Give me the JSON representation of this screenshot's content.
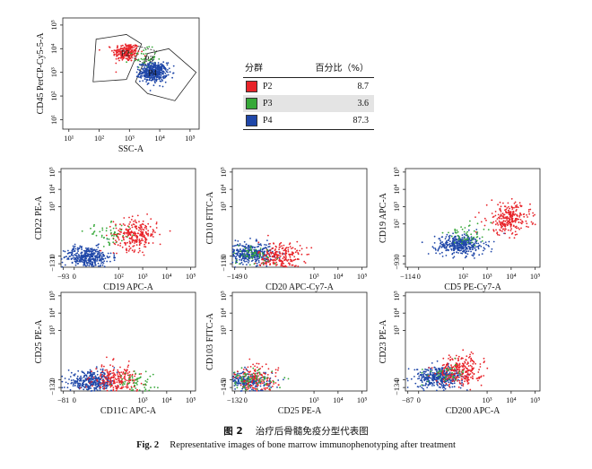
{
  "colors": {
    "P2": "#e8242a",
    "P3": "#36a838",
    "P4": "#1f47a8"
  },
  "legend": {
    "header_group": "分群",
    "header_pct": "百分比（%）",
    "rows": [
      {
        "name": "P2",
        "pct": "8.7",
        "color": "#e8242a"
      },
      {
        "name": "P3",
        "pct": "3.6",
        "color": "#36a838"
      },
      {
        "name": "P4",
        "pct": "87.3",
        "color": "#1f47a8"
      }
    ]
  },
  "caption": {
    "cn_label": "图 2",
    "cn_text": "治疗后骨髓免疫分型代表图",
    "en_label": "Fig. 2",
    "en_text": "Representative images of bone marrow immunophenotyping after treatment"
  },
  "chart_data": [
    {
      "id": "gating",
      "type": "scatter",
      "xlabel": "SSC-A",
      "ylabel": "CD45 PerCP-Cy5-5-A",
      "x_scale": "log",
      "y_scale": "log",
      "xticks": [
        "10¹",
        "10²",
        "10³",
        "10⁴",
        "10⁵"
      ],
      "yticks": [
        "10¹",
        "10²",
        "10³",
        "10⁴",
        "10⁵"
      ],
      "gates": [
        "P2",
        "P3",
        "P4"
      ],
      "populations": [
        {
          "name": "P2",
          "x": 2.9,
          "y": 3.85,
          "n": 220
        },
        {
          "name": "P3",
          "x": 3.45,
          "y": 3.6,
          "n": 40
        },
        {
          "name": "P4",
          "x": 3.8,
          "y": 3.0,
          "n": 460
        }
      ]
    },
    {
      "id": "cd22_cd19",
      "type": "scatter",
      "xlabel": "CD19 APC-A",
      "ylabel": "CD22 PE-A",
      "xticks": [
        "−93",
        "0",
        "10²",
        "10³",
        "10⁴",
        "10⁵"
      ],
      "yticks": [
        "−131",
        "0",
        "10³",
        "10⁴",
        "10⁵"
      ],
      "populations": [
        {
          "name": "P4",
          "x": 0.7,
          "y": 0.1,
          "n": 380
        },
        {
          "name": "P2",
          "x": 2.7,
          "y": 1.4,
          "n": 260
        },
        {
          "name": "P3",
          "x": 1.6,
          "y": 1.4,
          "n": 50
        }
      ]
    },
    {
      "id": "cd10_cd20",
      "type": "scatter",
      "xlabel": "CD20 APC-Cy7-A",
      "ylabel": "CD10 FITC-A",
      "xticks": [
        "−149",
        "0",
        "10³",
        "10⁴",
        "10⁵"
      ],
      "yticks": [
        "−118",
        "0",
        "10³",
        "10⁴",
        "10⁵"
      ],
      "populations": [
        {
          "name": "P4",
          "x": 0.3,
          "y": 0.3,
          "n": 380
        },
        {
          "name": "P2",
          "x": 1.6,
          "y": 0.1,
          "n": 240
        },
        {
          "name": "P3",
          "x": 0.5,
          "y": 0.2,
          "n": 50
        }
      ]
    },
    {
      "id": "cd19_cd5",
      "type": "scatter",
      "xlabel": "CD5 PE-Cy7-A",
      "ylabel": "CD19 APC-A",
      "xticks": [
        "−114",
        "0",
        "10²",
        "10³",
        "10⁴",
        "10⁵"
      ],
      "yticks": [
        "−93",
        "0",
        "10²",
        "10³",
        "10⁴",
        "10⁵"
      ],
      "populations": [
        {
          "name": "P4",
          "x": 1.9,
          "y": 0.8,
          "n": 380
        },
        {
          "name": "P2",
          "x": 3.9,
          "y": 2.3,
          "n": 260
        },
        {
          "name": "P3",
          "x": 2.2,
          "y": 1.4,
          "n": 50
        }
      ]
    },
    {
      "id": "cd25_cd11c",
      "type": "scatter",
      "xlabel": "CD11C APC-A",
      "ylabel": "CD25 PE-A",
      "xticks": [
        "−81",
        "0",
        "10³",
        "10⁴",
        "10⁵"
      ],
      "yticks": [
        "−132",
        "0",
        "10³",
        "10⁴",
        "10⁵"
      ],
      "populations": [
        {
          "name": "P4",
          "x": 0.9,
          "y": 0.0,
          "n": 380
        },
        {
          "name": "P2",
          "x": 1.9,
          "y": 0.1,
          "n": 240
        },
        {
          "name": "P3",
          "x": 2.6,
          "y": 0.05,
          "n": 60
        }
      ]
    },
    {
      "id": "cd103_cd25",
      "type": "scatter",
      "xlabel": "CD25 PE-A",
      "ylabel": "CD103 FITC-A",
      "xticks": [
        "−132",
        "0",
        "10³",
        "10⁴",
        "10⁵"
      ],
      "yticks": [
        "−145",
        "0",
        "10³",
        "10⁴",
        "10⁵"
      ],
      "populations": [
        {
          "name": "P4",
          "x": 0.2,
          "y": 0.05,
          "n": 260
        },
        {
          "name": "P2",
          "x": 0.6,
          "y": 0.1,
          "n": 160
        },
        {
          "name": "P3",
          "x": 0.3,
          "y": 0.1,
          "n": 80
        }
      ]
    },
    {
      "id": "cd23_cd200",
      "type": "scatter",
      "xlabel": "CD200 APC-A",
      "ylabel": "CD23 PE-A",
      "xticks": [
        "−87",
        "0",
        "10³",
        "10⁴",
        "10⁵"
      ],
      "yticks": [
        "−134",
        "0",
        "10³",
        "10⁴",
        "10⁵"
      ],
      "populations": [
        {
          "name": "P4",
          "x": 1.0,
          "y": 0.3,
          "n": 380
        },
        {
          "name": "P2",
          "x": 1.9,
          "y": 0.7,
          "n": 260
        },
        {
          "name": "P3",
          "x": 1.3,
          "y": 0.4,
          "n": 40
        }
      ]
    }
  ]
}
